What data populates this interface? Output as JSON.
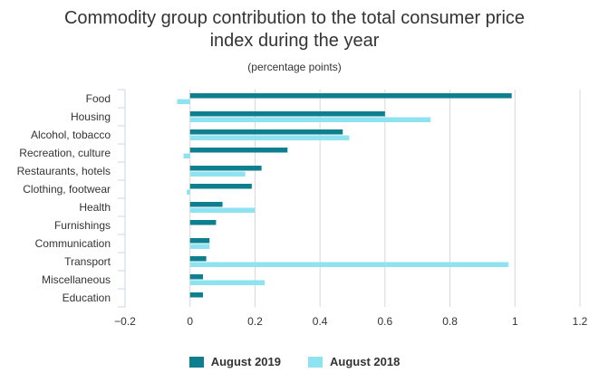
{
  "title_lines": [
    "Commodity group contribution to the total consumer price",
    "index during the year"
  ],
  "subtitle": "(percentage points)",
  "chart_data": {
    "type": "bar",
    "orientation": "horizontal",
    "categories": [
      "Food",
      "Housing",
      "Alcohol, tobacco",
      "Recreation, culture",
      "Restaurants, hotels",
      "Clothing, footwear",
      "Health",
      "Furnishings",
      "Communication",
      "Transport",
      "Miscellaneous",
      "Education"
    ],
    "series": [
      {
        "name": "August 2019",
        "color": "#0e7f8f",
        "values": [
          0.99,
          0.6,
          0.47,
          0.3,
          0.22,
          0.19,
          0.1,
          0.08,
          0.06,
          0.05,
          0.04,
          0.04
        ]
      },
      {
        "name": "August 2018",
        "color": "#8fe3f0",
        "values": [
          -0.04,
          0.74,
          0.49,
          -0.02,
          0.17,
          -0.01,
          0.2,
          0.0,
          0.06,
          0.98,
          0.23,
          0.0
        ]
      }
    ],
    "xlim": [
      -0.2,
      1.2
    ],
    "xticks": [
      "−0.2",
      "0",
      "0.2",
      "0.4",
      "0.6",
      "0.8",
      "1",
      "1.2"
    ],
    "xtick_values": [
      -0.2,
      0,
      0.2,
      0.4,
      0.6,
      0.8,
      1.0,
      1.2
    ],
    "grid": true,
    "legend_position": "bottom"
  }
}
